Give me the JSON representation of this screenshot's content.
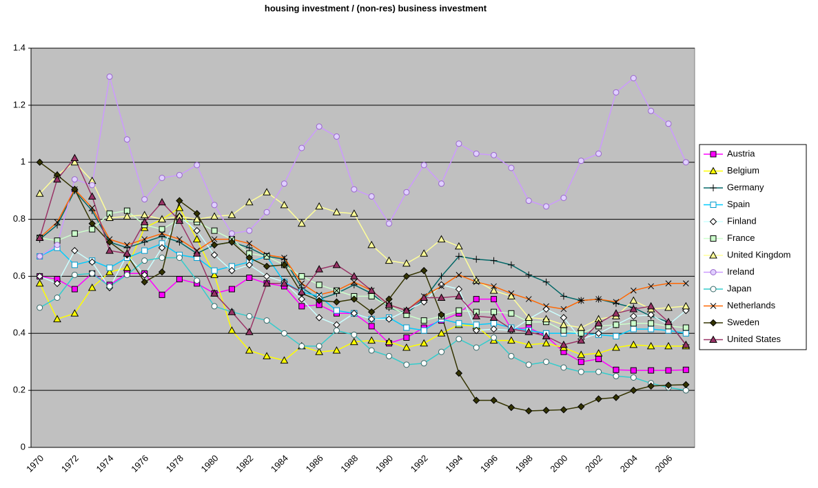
{
  "chart_data": {
    "type": "line",
    "title": "housing investment / (non-res) business investment",
    "categories": [
      "1970",
      null,
      "1972",
      null,
      "1974",
      null,
      "1976",
      null,
      "1978",
      null,
      "1980",
      null,
      "1982",
      null,
      "1984",
      null,
      "1986",
      null,
      "1988",
      null,
      "1990",
      null,
      "1992",
      null,
      "1994",
      null,
      "1996",
      null,
      "1998",
      null,
      "2000",
      null,
      "2002",
      null,
      "2004",
      null,
      "2006",
      null
    ],
    "ylim": [
      0,
      1.4
    ],
    "yticks": [
      0,
      0.2,
      0.4,
      0.6,
      0.8,
      1,
      1.2,
      1.4
    ],
    "grid": true,
    "legend": "right",
    "series": [
      {
        "name": "Austria",
        "color": "#ff00ff",
        "marker": "square",
        "marker_fill": "#ff00ff",
        "marker_edge": "#000000",
        "values": [
          0.6,
          0.59,
          0.555,
          0.61,
          0.57,
          0.61,
          0.61,
          0.535,
          0.59,
          0.575,
          0.54,
          0.555,
          0.595,
          0.575,
          0.565,
          0.495,
          0.5,
          0.47,
          0.47,
          0.425,
          0.365,
          0.385,
          0.42,
          0.445,
          0.47,
          0.52,
          0.52,
          0.415,
          0.42,
          0.39,
          0.335,
          0.3,
          0.31,
          0.272,
          0.27,
          0.27,
          0.27,
          0.272
        ]
      },
      {
        "name": "Belgium",
        "color": "#ffff00",
        "marker": "triangle",
        "marker_fill": "#ffff00",
        "marker_edge": "#000000",
        "values": [
          0.575,
          0.45,
          0.47,
          0.56,
          0.615,
          0.63,
          0.77,
          0.8,
          0.84,
          0.73,
          0.605,
          0.41,
          0.34,
          0.32,
          0.305,
          0.355,
          0.335,
          0.34,
          0.37,
          0.375,
          0.37,
          0.35,
          0.365,
          0.4,
          0.43,
          0.425,
          0.375,
          0.375,
          0.36,
          0.365,
          0.35,
          0.325,
          0.33,
          0.35,
          0.36,
          0.355,
          0.355,
          0.355
        ]
      },
      {
        "name": "Germany",
        "color": "#006666",
        "marker": "plus",
        "marker_fill": "none",
        "marker_edge": "#000000",
        "values": [
          0.73,
          0.78,
          0.9,
          0.83,
          0.72,
          0.7,
          0.72,
          0.74,
          0.72,
          0.68,
          0.71,
          0.72,
          0.7,
          0.67,
          0.66,
          0.56,
          0.52,
          0.54,
          0.57,
          0.54,
          0.49,
          0.47,
          0.52,
          0.6,
          0.67,
          0.66,
          0.655,
          0.64,
          0.605,
          0.58,
          0.53,
          0.515,
          0.52,
          0.505,
          0.49,
          0.46,
          0.44,
          0.36
        ]
      },
      {
        "name": "Spain",
        "color": "#00ccff",
        "marker": "square",
        "marker_fill": "#ffffff",
        "marker_edge": "#0099cc",
        "values": [
          0.67,
          0.7,
          0.64,
          0.655,
          0.63,
          0.665,
          0.69,
          0.715,
          0.675,
          0.665,
          0.62,
          0.635,
          0.65,
          0.67,
          0.58,
          0.545,
          0.53,
          0.48,
          0.47,
          0.45,
          0.455,
          0.42,
          0.41,
          0.45,
          0.435,
          0.43,
          0.435,
          0.42,
          0.41,
          0.4,
          0.4,
          0.4,
          0.395,
          0.39,
          0.415,
          0.415,
          0.41,
          0.4
        ]
      },
      {
        "name": "Finland",
        "color": "#ccffff",
        "marker": "diamond",
        "marker_fill": "#ffffff",
        "marker_edge": "#000000",
        "values": [
          0.6,
          0.575,
          0.69,
          0.65,
          0.56,
          0.675,
          0.605,
          0.7,
          0.81,
          0.76,
          0.675,
          0.62,
          0.64,
          0.6,
          0.58,
          0.52,
          0.455,
          0.43,
          0.47,
          0.45,
          0.45,
          0.48,
          0.51,
          0.57,
          0.555,
          0.41,
          0.415,
          0.41,
          0.45,
          0.485,
          0.455,
          0.38,
          0.4,
          0.43,
          0.46,
          0.465,
          0.43,
          0.48
        ]
      },
      {
        "name": "France",
        "color": "#ccffcc",
        "marker": "square",
        "marker_fill": "#ccffcc",
        "marker_edge": "#000000",
        "values": [
          0.735,
          0.725,
          0.75,
          0.765,
          0.82,
          0.83,
          0.78,
          0.765,
          0.8,
          0.79,
          0.76,
          0.73,
          0.68,
          0.67,
          0.64,
          0.6,
          0.57,
          0.55,
          0.53,
          0.53,
          0.495,
          0.465,
          0.445,
          0.46,
          0.48,
          0.475,
          0.475,
          0.47,
          0.44,
          0.44,
          0.41,
          0.4,
          0.425,
          0.43,
          0.435,
          0.435,
          0.425,
          0.42
        ]
      },
      {
        "name": "United Kingdom",
        "color": "#ffff99",
        "marker": "triangle",
        "marker_fill": "#ffff99",
        "marker_edge": "#000000",
        "values": [
          0.89,
          0.955,
          1.0,
          0.935,
          0.805,
          0.81,
          0.815,
          0.8,
          0.81,
          0.8,
          0.81,
          0.815,
          0.86,
          0.895,
          0.85,
          0.785,
          0.845,
          0.825,
          0.82,
          0.71,
          0.655,
          0.645,
          0.68,
          0.73,
          0.705,
          0.585,
          0.55,
          0.53,
          0.455,
          0.45,
          0.43,
          0.42,
          0.45,
          0.46,
          0.515,
          0.485,
          0.49,
          0.495
        ]
      },
      {
        "name": "Ireland",
        "color": "#cc99ff",
        "marker": "circle",
        "marker_fill": "#e0d0ff",
        "marker_edge": "#9966cc",
        "values": [
          0.67,
          0.71,
          0.94,
          0.92,
          1.3,
          1.08,
          0.87,
          0.945,
          0.955,
          0.99,
          0.85,
          0.75,
          0.76,
          0.825,
          0.925,
          1.05,
          1.125,
          1.09,
          0.905,
          0.88,
          0.785,
          0.895,
          0.99,
          0.925,
          1.065,
          1.03,
          1.025,
          0.98,
          0.865,
          0.845,
          0.875,
          1.005,
          1.03,
          1.245,
          1.295,
          1.18,
          1.135,
          1.0
        ]
      },
      {
        "name": "Japan",
        "color": "#33cccc",
        "marker": "circle",
        "marker_fill": "#ffffff",
        "marker_edge": "#336666",
        "values": [
          0.49,
          0.525,
          0.605,
          0.61,
          0.565,
          0.605,
          0.655,
          0.665,
          0.665,
          0.585,
          0.495,
          0.475,
          0.46,
          0.445,
          0.4,
          0.355,
          0.355,
          0.41,
          0.395,
          0.34,
          0.32,
          0.29,
          0.295,
          0.335,
          0.38,
          0.35,
          0.385,
          0.32,
          0.29,
          0.3,
          0.28,
          0.265,
          0.265,
          0.25,
          0.245,
          0.225,
          0.21,
          0.2
        ]
      },
      {
        "name": "Netherlands",
        "color": "#ff6600",
        "marker": "cross",
        "marker_fill": "none",
        "marker_edge": "#000000",
        "values": [
          0.735,
          0.79,
          0.905,
          0.84,
          0.73,
          0.71,
          0.73,
          0.75,
          0.73,
          0.69,
          0.73,
          0.73,
          0.715,
          0.675,
          0.665,
          0.575,
          0.535,
          0.55,
          0.58,
          0.55,
          0.5,
          0.48,
          0.53,
          0.565,
          0.605,
          0.58,
          0.565,
          0.54,
          0.52,
          0.495,
          0.485,
          0.515,
          0.52,
          0.51,
          0.55,
          0.565,
          0.575,
          0.575
        ]
      },
      {
        "name": "Sweden",
        "color": "#333300",
        "marker": "diamond",
        "marker_fill": "#333300",
        "marker_edge": "#000000",
        "values": [
          1.0,
          0.955,
          0.905,
          0.785,
          0.72,
          0.675,
          0.58,
          0.615,
          0.865,
          0.82,
          0.71,
          0.72,
          0.665,
          0.635,
          0.64,
          0.54,
          0.515,
          0.51,
          0.52,
          0.475,
          0.52,
          0.6,
          0.62,
          0.465,
          0.26,
          0.165,
          0.165,
          0.14,
          0.128,
          0.13,
          0.132,
          0.143,
          0.17,
          0.175,
          0.2,
          0.215,
          0.218,
          0.22
        ]
      },
      {
        "name": "United States",
        "color": "#993366",
        "marker": "triangle",
        "marker_fill": "#993366",
        "marker_edge": "#000000",
        "values": [
          0.735,
          0.94,
          1.015,
          0.88,
          0.69,
          0.68,
          0.79,
          0.86,
          0.795,
          0.68,
          0.54,
          0.475,
          0.405,
          0.575,
          0.575,
          0.545,
          0.625,
          0.64,
          0.6,
          0.55,
          0.5,
          0.48,
          0.525,
          0.525,
          0.53,
          0.46,
          0.455,
          0.415,
          0.405,
          0.39,
          0.36,
          0.375,
          0.435,
          0.47,
          0.485,
          0.495,
          0.44,
          0.36
        ]
      }
    ]
  }
}
